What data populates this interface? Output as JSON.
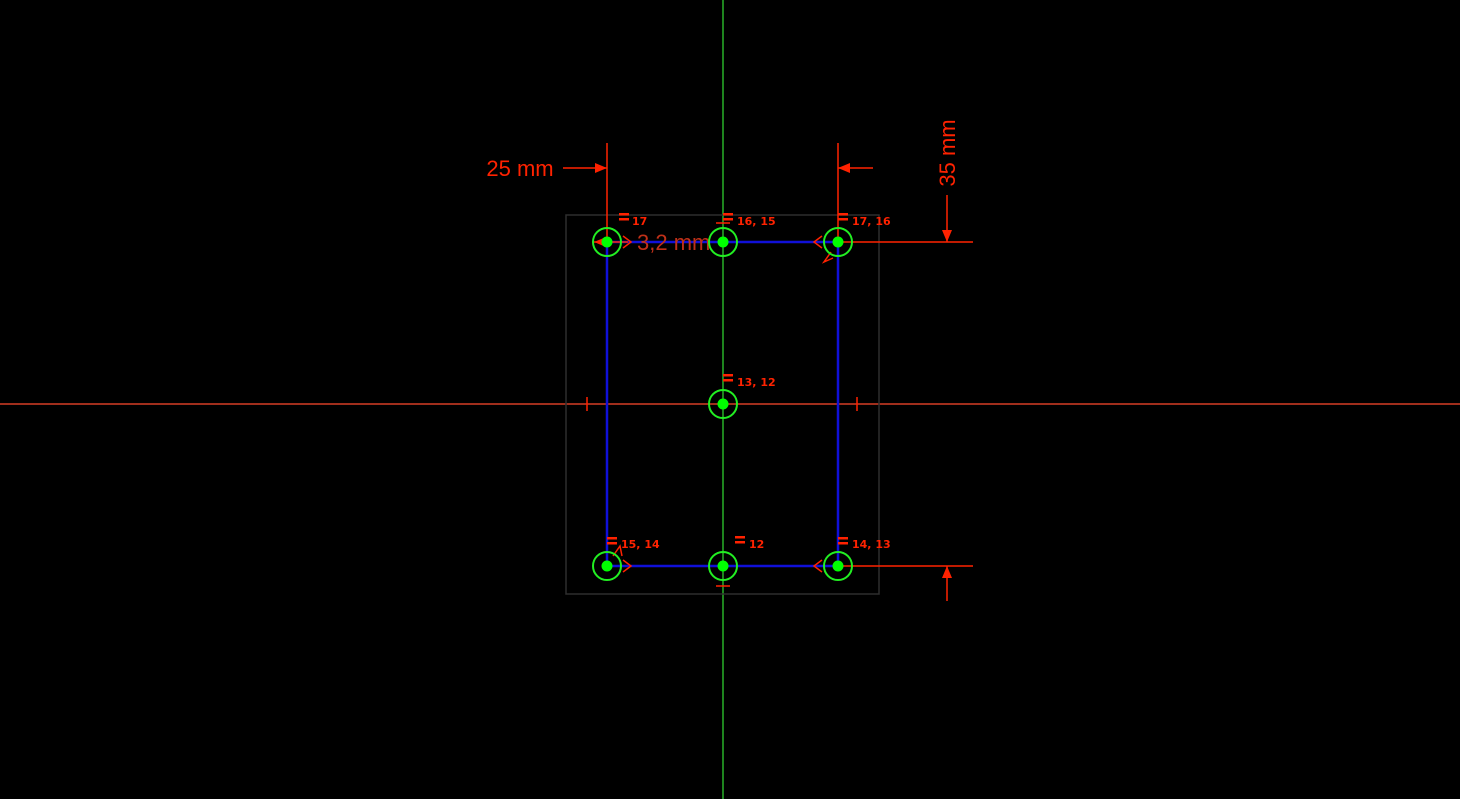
{
  "sketch": {
    "colors": {
      "background": "#000000",
      "x_axis": "#ff4a2e",
      "y_axis": "#33dd33",
      "geometry": "#1010d8",
      "constraint": "#ff2200",
      "point_fill": "#00ff00",
      "point_ring": "#22ee22",
      "bbox": "#2a2a2a"
    },
    "dimensions": {
      "horizontal_distance": "25 mm",
      "vertical_distance": "35 mm",
      "radius": "3,2 mm"
    },
    "constraint_labels": {
      "top_left": "17",
      "top_mid": "16, 15",
      "top_right": "17, 16",
      "center": "13, 12",
      "bottom_left": "15, 14",
      "bottom_mid": "12",
      "bottom_right": "14, 13"
    }
  }
}
